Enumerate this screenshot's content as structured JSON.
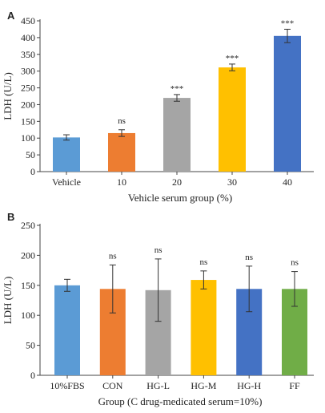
{
  "chart_data": [
    {
      "panel": "A",
      "type": "bar",
      "categories": [
        "Vehicle",
        "10",
        "20",
        "30",
        "40"
      ],
      "values": [
        102,
        115,
        220,
        311,
        405
      ],
      "errors": [
        8,
        10,
        10,
        10,
        20
      ],
      "annotations": [
        "",
        "ns",
        "***",
        "***",
        "***"
      ],
      "colors": [
        "#5B9BD5",
        "#ED7D31",
        "#A5A5A5",
        "#FFC000",
        "#4472C4"
      ],
      "xlabel": "Vehicle serum group (%)",
      "ylabel": "LDH (U/L)",
      "ylim": [
        0,
        450
      ],
      "yticks": [
        0,
        50,
        100,
        150,
        200,
        250,
        300,
        350,
        400,
        450
      ],
      "grid": false
    },
    {
      "panel": "B",
      "type": "bar",
      "categories": [
        "10%FBS",
        "CON",
        "HG-L",
        "HG-M",
        "HG-H",
        "FF"
      ],
      "values": [
        150,
        144,
        142,
        159,
        144,
        144
      ],
      "errors": [
        10,
        40,
        52,
        15,
        38,
        29
      ],
      "annotations": [
        "",
        "ns",
        "ns",
        "ns",
        "ns",
        "ns"
      ],
      "colors": [
        "#5B9BD5",
        "#ED7D31",
        "#A5A5A5",
        "#FFC000",
        "#4472C4",
        "#70AD47"
      ],
      "xlabel": "Group (C drug-medicated serum=10%)",
      "ylabel": "LDH (U/L)",
      "ylim": [
        0,
        250
      ],
      "yticks": [
        0,
        50,
        100,
        150,
        200,
        250
      ],
      "grid": false
    }
  ]
}
